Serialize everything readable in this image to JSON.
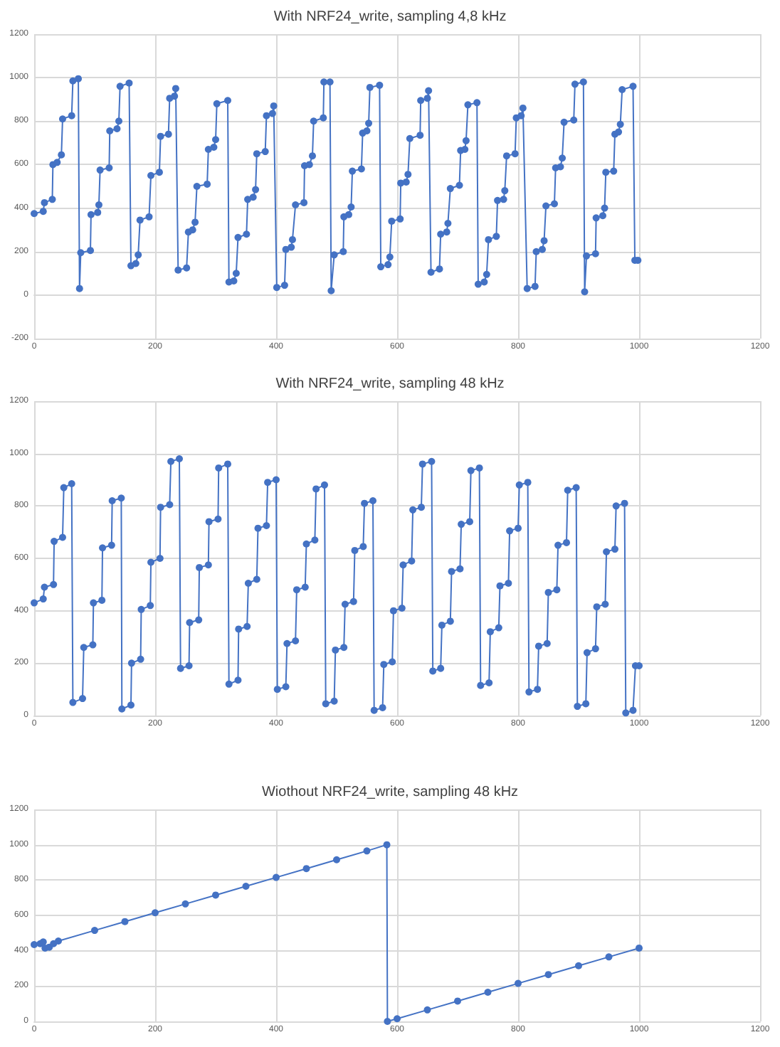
{
  "chart_data": [
    {
      "type": "line",
      "title": "With NRF24_write, sampling 4,8 kHz",
      "marker": "circle",
      "grid": true,
      "xlim": [
        0,
        1200
      ],
      "xticks": [
        0,
        200,
        400,
        600,
        800,
        1000,
        1200
      ],
      "ylim": [
        -200,
        1200
      ],
      "yticks": [
        -200,
        0,
        200,
        400,
        600,
        800,
        1000,
        1200
      ],
      "series": [
        {
          "color": "#4472c4",
          "x": [
            0,
            15,
            17,
            30,
            31,
            38,
            45,
            47,
            62,
            64,
            73,
            75,
            77,
            93,
            94,
            105,
            107,
            109,
            124,
            125,
            137,
            140,
            142,
            157,
            160,
            168,
            172,
            175,
            190,
            193,
            207,
            209,
            222,
            224,
            232,
            234,
            238,
            252,
            255,
            262,
            266,
            269,
            286,
            288,
            297,
            300,
            302,
            320,
            322,
            330,
            334,
            337,
            351,
            353,
            362,
            366,
            368,
            382,
            384,
            394,
            396,
            401,
            414,
            416,
            425,
            427,
            432,
            446,
            447,
            455,
            460,
            462,
            478,
            479,
            489,
            491,
            496,
            511,
            512,
            520,
            524,
            526,
            541,
            543,
            550,
            553,
            555,
            571,
            573,
            585,
            588,
            591,
            605,
            606,
            615,
            618,
            621,
            638,
            639,
            650,
            652,
            656,
            670,
            672,
            682,
            684,
            688,
            703,
            705,
            712,
            714,
            717,
            732,
            734,
            744,
            748,
            751,
            764,
            766,
            776,
            778,
            781,
            795,
            797,
            805,
            808,
            815,
            828,
            830,
            840,
            843,
            846,
            860,
            862,
            870,
            873,
            876,
            892,
            894,
            908,
            910,
            913,
            928,
            929,
            940,
            943,
            945,
            958,
            960,
            966,
            969,
            972,
            990,
            993,
            998
          ],
          "values": [
            375,
            385,
            425,
            440,
            600,
            610,
            645,
            810,
            825,
            985,
            995,
            30,
            195,
            205,
            370,
            380,
            415,
            575,
            585,
            755,
            765,
            800,
            960,
            975,
            135,
            145,
            185,
            345,
            360,
            550,
            565,
            730,
            740,
            905,
            915,
            950,
            115,
            125,
            290,
            300,
            335,
            500,
            510,
            670,
            680,
            715,
            880,
            895,
            60,
            65,
            100,
            265,
            280,
            440,
            450,
            485,
            650,
            660,
            825,
            835,
            870,
            35,
            45,
            210,
            220,
            255,
            415,
            425,
            595,
            600,
            640,
            800,
            815,
            980,
            980,
            20,
            185,
            200,
            360,
            370,
            405,
            570,
            580,
            745,
            755,
            790,
            955,
            965,
            130,
            140,
            175,
            340,
            350,
            515,
            520,
            555,
            720,
            735,
            895,
            905,
            940,
            105,
            120,
            280,
            290,
            330,
            490,
            505,
            665,
            670,
            710,
            875,
            885,
            50,
            60,
            95,
            255,
            270,
            435,
            440,
            480,
            640,
            650,
            815,
            825,
            860,
            30,
            40,
            200,
            210,
            250,
            410,
            420,
            585,
            590,
            630,
            795,
            805,
            970,
            980,
            15,
            180,
            190,
            355,
            365,
            400,
            565,
            570,
            740,
            750,
            785,
            945,
            960,
            160,
            160
          ]
        }
      ]
    },
    {
      "type": "line",
      "title": "With NRF24_write, sampling 48 kHz",
      "marker": "circle",
      "grid": true,
      "xlim": [
        0,
        1200
      ],
      "xticks": [
        0,
        200,
        400,
        600,
        800,
        1000,
        1200
      ],
      "ylim": [
        0,
        1200
      ],
      "yticks": [
        0,
        200,
        400,
        600,
        800,
        1000,
        1200
      ],
      "series": [
        {
          "color": "#4472c4",
          "x": [
            0,
            15,
            17,
            32,
            33,
            47,
            49,
            62,
            64,
            80,
            82,
            97,
            98,
            112,
            113,
            128,
            129,
            144,
            145,
            160,
            161,
            176,
            177,
            192,
            193,
            208,
            209,
            224,
            226,
            240,
            242,
            256,
            257,
            272,
            273,
            288,
            289,
            304,
            305,
            320,
            322,
            337,
            338,
            352,
            354,
            368,
            370,
            384,
            386,
            400,
            402,
            416,
            418,
            432,
            434,
            448,
            450,
            464,
            466,
            480,
            482,
            496,
            498,
            512,
            514,
            528,
            530,
            544,
            546,
            560,
            562,
            576,
            578,
            592,
            594,
            608,
            610,
            624,
            626,
            640,
            642,
            657,
            659,
            672,
            674,
            688,
            690,
            704,
            706,
            720,
            722,
            736,
            738,
            752,
            754,
            768,
            770,
            784,
            786,
            800,
            802,
            816,
            818,
            832,
            834,
            848,
            850,
            864,
            866,
            880,
            882,
            896,
            898,
            912,
            914,
            928,
            930,
            944,
            946,
            960,
            962,
            976,
            978,
            990,
            994,
            1000
          ],
          "values": [
            430,
            445,
            490,
            500,
            665,
            680,
            870,
            885,
            50,
            65,
            260,
            270,
            430,
            440,
            640,
            650,
            820,
            830,
            25,
            40,
            200,
            215,
            405,
            420,
            585,
            600,
            795,
            805,
            970,
            980,
            180,
            190,
            355,
            365,
            565,
            575,
            740,
            750,
            945,
            960,
            120,
            135,
            330,
            340,
            505,
            520,
            715,
            725,
            890,
            900,
            100,
            110,
            275,
            285,
            480,
            490,
            655,
            670,
            865,
            880,
            45,
            55,
            250,
            260,
            425,
            435,
            630,
            645,
            810,
            820,
            20,
            30,
            195,
            205,
            400,
            410,
            575,
            590,
            785,
            795,
            960,
            970,
            170,
            180,
            345,
            360,
            550,
            560,
            730,
            740,
            935,
            945,
            115,
            125,
            320,
            335,
            495,
            505,
            705,
            715,
            880,
            890,
            90,
            100,
            265,
            275,
            470,
            480,
            650,
            660,
            860,
            870,
            35,
            45,
            240,
            255,
            415,
            425,
            625,
            635,
            800,
            810,
            10,
            20,
            190,
            190
          ]
        }
      ]
    },
    {
      "type": "line",
      "title": "Wiothout NRF24_write, sampling 48 kHz",
      "marker": "circle",
      "grid": true,
      "xlim": [
        0,
        1200
      ],
      "xticks": [
        0,
        200,
        400,
        600,
        800,
        1000,
        1200
      ],
      "ylim": [
        0,
        1200
      ],
      "yticks": [
        0,
        200,
        400,
        600,
        800,
        1000,
        1200
      ],
      "series": [
        {
          "color": "#4472c4",
          "x": [
            0,
            10,
            15,
            18,
            25,
            32,
            40,
            100,
            150,
            200,
            250,
            300,
            350,
            400,
            450,
            500,
            550,
            583,
            584,
            600,
            650,
            700,
            750,
            800,
            850,
            900,
            950,
            1000
          ],
          "values": [
            435,
            440,
            450,
            415,
            420,
            440,
            455,
            515,
            565,
            615,
            665,
            715,
            765,
            815,
            865,
            915,
            965,
            1000,
            0,
            15,
            65,
            115,
            165,
            215,
            265,
            315,
            365,
            415
          ]
        }
      ]
    }
  ]
}
